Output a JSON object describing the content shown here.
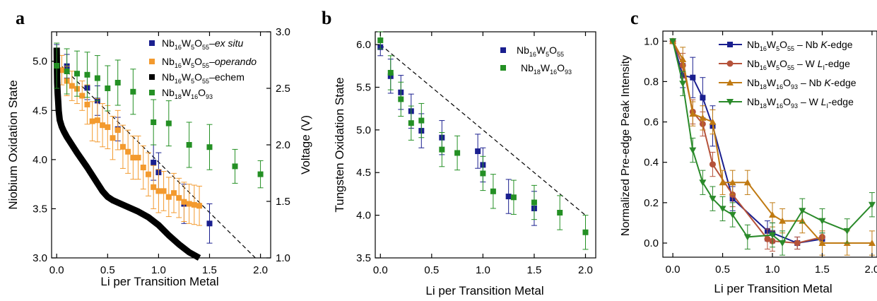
{
  "figure": {
    "colors": {
      "nb16_exsitu": "#1a1f8f",
      "nb16_operando": "#f39a2e",
      "echem": "#000000",
      "nb18": "#249024",
      "c_nb16_nb": "#1a1f8f",
      "c_nb16_w": "#b5523a",
      "c_nb18_nb": "#c07a12",
      "c_nb18_w": "#2a8a2a"
    },
    "panel_labels": [
      "a",
      "b",
      "c"
    ]
  },
  "chart_data": [
    {
      "type": "scatter",
      "panel": "a",
      "xlabel": "Li per Transition Metal",
      "ylabel": "Niobium Oxidation State",
      "y2label": "Voltage (V)",
      "xlim": [
        -0.05,
        2.1
      ],
      "ylim": [
        3.0,
        5.3
      ],
      "y2lim": [
        1.0,
        3.0
      ],
      "xticks": [
        "0.0",
        "0.5",
        "1.0",
        "1.5",
        "2.0"
      ],
      "yticks": [
        "3.0",
        "3.5",
        "4.0",
        "4.5",
        "5.0"
      ],
      "y2ticks": [
        "1.0",
        "1.5",
        "2.0",
        "2.5",
        "3.0"
      ],
      "legend": [
        "Nb16W5O55–ex situ",
        "Nb16W5O55–operando",
        "Nb16W5O55–echem",
        "Nb18W16O93"
      ],
      "legend_position": "top-right",
      "series": [
        {
          "name": "Nb16W5O55–ex situ",
          "color_key": "nb16_exsitu",
          "x": [
            0.0,
            0.1,
            0.3,
            0.4,
            0.6,
            0.95,
            1.0,
            1.25,
            1.5
          ],
          "y": [
            5.05,
            4.95,
            4.73,
            4.6,
            4.31,
            3.97,
            3.87,
            3.55,
            3.35
          ],
          "err": [
            0.12,
            0.12,
            0.12,
            0.15,
            0.12,
            0.18,
            0.2,
            0.2,
            0.2
          ]
        },
        {
          "name": "Nb16W5O55–operando",
          "color_key": "nb16_operando",
          "x": [
            0.05,
            0.1,
            0.15,
            0.2,
            0.25,
            0.3,
            0.35,
            0.4,
            0.45,
            0.5,
            0.55,
            0.6,
            0.65,
            0.7,
            0.75,
            0.8,
            0.85,
            0.9,
            0.95,
            1.0,
            1.05,
            1.1,
            1.15,
            1.2,
            1.25,
            1.3,
            1.35,
            1.4
          ],
          "y": [
            4.91,
            4.8,
            4.75,
            4.72,
            4.65,
            4.56,
            4.39,
            4.4,
            4.35,
            4.33,
            4.22,
            4.3,
            4.13,
            4.08,
            4.02,
            4.02,
            3.92,
            3.85,
            3.72,
            3.68,
            3.68,
            3.62,
            3.66,
            3.61,
            3.57,
            3.55,
            3.54,
            3.53
          ],
          "err": [
            0.15,
            0.15,
            0.15,
            0.15,
            0.15,
            0.2,
            0.2,
            0.22,
            0.22,
            0.22,
            0.22,
            0.2,
            0.22,
            0.22,
            0.22,
            0.22,
            0.22,
            0.22,
            0.22,
            0.22,
            0.2,
            0.2,
            0.2,
            0.2,
            0.2,
            0.2,
            0.2,
            0.2
          ]
        },
        {
          "name": "Nb16W5O55–echem",
          "color_key": "echem",
          "axis": "right",
          "x": [
            0.0,
            0.002,
            0.005,
            0.01,
            0.015,
            0.02,
            0.03,
            0.05,
            0.07,
            0.1,
            0.15,
            0.2,
            0.3,
            0.4,
            0.45,
            0.5,
            0.55,
            0.6,
            0.7,
            0.8,
            0.9,
            1.0,
            1.1,
            1.2,
            1.3,
            1.4
          ],
          "y": [
            2.86,
            2.7,
            2.55,
            2.45,
            2.38,
            2.3,
            2.22,
            2.16,
            2.12,
            2.07,
            2.0,
            1.93,
            1.8,
            1.66,
            1.59,
            1.54,
            1.51,
            1.49,
            1.45,
            1.41,
            1.36,
            1.29,
            1.2,
            1.12,
            1.05,
            1.0
          ]
        },
        {
          "name": "Nb18W16O93",
          "color_key": "nb18",
          "axis": "right",
          "x": [
            0.0,
            0.1,
            0.2,
            0.3,
            0.4,
            0.5,
            0.6,
            0.75,
            0.95,
            1.1,
            1.3,
            1.5,
            1.75,
            2.0
          ],
          "y": [
            2.7,
            2.65,
            2.63,
            2.62,
            2.59,
            2.5,
            2.55,
            2.47,
            2.2,
            2.19,
            2.0,
            1.98,
            1.81,
            1.74
          ],
          "err": [
            0.2,
            0.2,
            0.2,
            0.2,
            0.2,
            0.2,
            0.2,
            0.2,
            0.2,
            0.2,
            0.2,
            0.2,
            0.15,
            0.12
          ]
        }
      ],
      "reference_line": {
        "x": [
          0.0,
          1.95
        ],
        "y": [
          5.0,
          3.0
        ],
        "style": "dashed"
      }
    },
    {
      "type": "scatter",
      "panel": "b",
      "xlabel": "Li per Transition Metal",
      "ylabel": "Tungsten Oxidation State",
      "xlim": [
        -0.05,
        2.1
      ],
      "ylim": [
        3.5,
        6.15
      ],
      "xticks": [
        "0.0",
        "0.5",
        "1.0",
        "1.5",
        "2.0"
      ],
      "yticks": [
        "3.5",
        "4.0",
        "4.5",
        "5.0",
        "5.5",
        "6.0"
      ],
      "legend": [
        "Nb16W5O55",
        "Nb18W16O93"
      ],
      "legend_position": "top-right",
      "series": [
        {
          "name": "Nb16W5O55",
          "color_key": "nb16_exsitu",
          "x": [
            0.0,
            0.1,
            0.2,
            0.3,
            0.4,
            0.6,
            0.95,
            1.0,
            1.25,
            1.5
          ],
          "y": [
            5.97,
            5.63,
            5.44,
            5.22,
            4.99,
            4.91,
            4.75,
            4.59,
            4.22,
            4.08
          ],
          "err": [
            0.1,
            0.2,
            0.2,
            0.2,
            0.2,
            0.2,
            0.2,
            0.2,
            0.2,
            0.2
          ]
        },
        {
          "name": "Nb18W16O93",
          "color_key": "nb18",
          "x": [
            0.0,
            0.1,
            0.2,
            0.3,
            0.4,
            0.6,
            0.75,
            1.0,
            1.1,
            1.3,
            1.5,
            1.75,
            2.0
          ],
          "y": [
            6.05,
            5.67,
            5.36,
            5.08,
            5.11,
            4.77,
            4.73,
            4.49,
            4.28,
            4.21,
            4.15,
            4.03,
            3.8
          ],
          "err": [
            0.1,
            0.2,
            0.2,
            0.2,
            0.2,
            0.2,
            0.2,
            0.2,
            0.2,
            0.2,
            0.2,
            0.2,
            0.2
          ]
        }
      ],
      "reference_line": {
        "x": [
          0.0,
          2.0
        ],
        "y": [
          6.0,
          4.0
        ],
        "style": "dashed"
      }
    },
    {
      "type": "line",
      "panel": "c",
      "xlabel": "Li per Transition Metal",
      "ylabel": "Normalized Pre-edge Peak Intensity",
      "xlim": [
        -0.1,
        2.05
      ],
      "ylim": [
        -0.07,
        1.05
      ],
      "xticks": [
        "0.0",
        "0.5",
        "1.0",
        "1.5",
        "2.0"
      ],
      "yticks": [
        "0.0",
        "0.2",
        "0.4",
        "0.6",
        "0.8",
        "1.0"
      ],
      "legend": [
        "Nb16W5O55 – Nb K-edge",
        "Nb16W5O55 – W LI-edge",
        "Nb18W16O93 – Nb K-edge",
        "Nb18W16O93 – W LI-edge"
      ],
      "legend_position": "top-right",
      "series": [
        {
          "name": "Nb16W5O55 – Nb K-edge",
          "color_key": "c_nb16_nb",
          "marker": "square",
          "x": [
            0.0,
            0.1,
            0.2,
            0.3,
            0.4,
            0.6,
            0.95,
            1.0,
            1.25,
            1.5
          ],
          "y": [
            1.0,
            0.83,
            0.82,
            0.72,
            0.58,
            0.22,
            0.06,
            0.05,
            0.0,
            0.02
          ],
          "err": [
            0.0,
            0.06,
            0.1,
            0.1,
            0.1,
            0.06,
            0.05,
            0.05,
            0.03,
            0.03
          ]
        },
        {
          "name": "Nb16W5O55 – W LI-edge",
          "color_key": "c_nb16_w",
          "marker": "circle",
          "x": [
            0.0,
            0.1,
            0.2,
            0.3,
            0.4,
            0.6,
            0.95,
            1.0,
            1.25,
            1.5
          ],
          "y": [
            1.0,
            0.88,
            0.65,
            0.59,
            0.39,
            0.24,
            0.02,
            0.01,
            0.0,
            0.03
          ],
          "err": [
            0.0,
            0.06,
            0.06,
            0.06,
            0.06,
            0.06,
            0.05,
            0.05,
            0.03,
            0.03
          ]
        },
        {
          "name": "Nb18W16O93 – Nb K-edge",
          "color_key": "c_nb18_nb",
          "marker": "triangle-up",
          "x": [
            0.0,
            0.1,
            0.2,
            0.3,
            0.4,
            0.5,
            0.6,
            0.75,
            1.0,
            1.1,
            1.3,
            1.5,
            1.75,
            2.0
          ],
          "y": [
            1.0,
            0.91,
            0.64,
            0.62,
            0.6,
            0.3,
            0.3,
            0.3,
            0.14,
            0.11,
            0.11,
            0.0,
            0.0,
            0.0
          ],
          "err": [
            0.0,
            0.06,
            0.06,
            0.06,
            0.06,
            0.06,
            0.06,
            0.06,
            0.06,
            0.06,
            0.06,
            0.06,
            0.06,
            0.06
          ]
        },
        {
          "name": "Nb18W16O93 – W LI-edge",
          "color_key": "c_nb18_w",
          "marker": "triangle-down",
          "x": [
            0.0,
            0.1,
            0.2,
            0.3,
            0.4,
            0.5,
            0.6,
            0.75,
            1.0,
            1.1,
            1.3,
            1.5,
            1.75,
            2.0
          ],
          "y": [
            1.0,
            0.79,
            0.46,
            0.3,
            0.22,
            0.17,
            0.14,
            0.03,
            0.04,
            0.0,
            0.16,
            0.11,
            0.06,
            0.19
          ],
          "err": [
            0.0,
            0.06,
            0.06,
            0.06,
            0.06,
            0.06,
            0.06,
            0.06,
            0.06,
            0.06,
            0.06,
            0.06,
            0.06,
            0.06
          ]
        }
      ]
    }
  ]
}
